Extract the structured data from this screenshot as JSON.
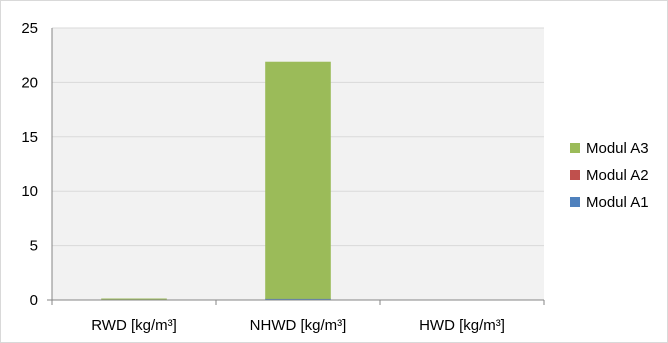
{
  "chart_data": {
    "type": "bar",
    "stacked": true,
    "categories": [
      "RWD [kg/m³]",
      "NHWD [kg/m³]",
      "HWD [kg/m³]"
    ],
    "series": [
      {
        "name": "Modul A1",
        "color": "#4f81bd",
        "values": [
          0.0,
          0.1,
          0.0
        ]
      },
      {
        "name": "Modul A2",
        "color": "#c0504d",
        "values": [
          0.0,
          0.0,
          0.0
        ]
      },
      {
        "name": "Modul A3",
        "color": "#9bbb59",
        "values": [
          0.1,
          21.8,
          0.0
        ]
      }
    ],
    "legend_order": [
      "Modul A3",
      "Modul A2",
      "Modul A1"
    ],
    "yticks": [
      "0",
      "5",
      "10",
      "15",
      "20",
      "25"
    ],
    "ylim": [
      0,
      25
    ],
    "grid": true,
    "legend_position": "right",
    "plot_background": "#f2f2f2",
    "grid_color": "#d9d9d9"
  }
}
